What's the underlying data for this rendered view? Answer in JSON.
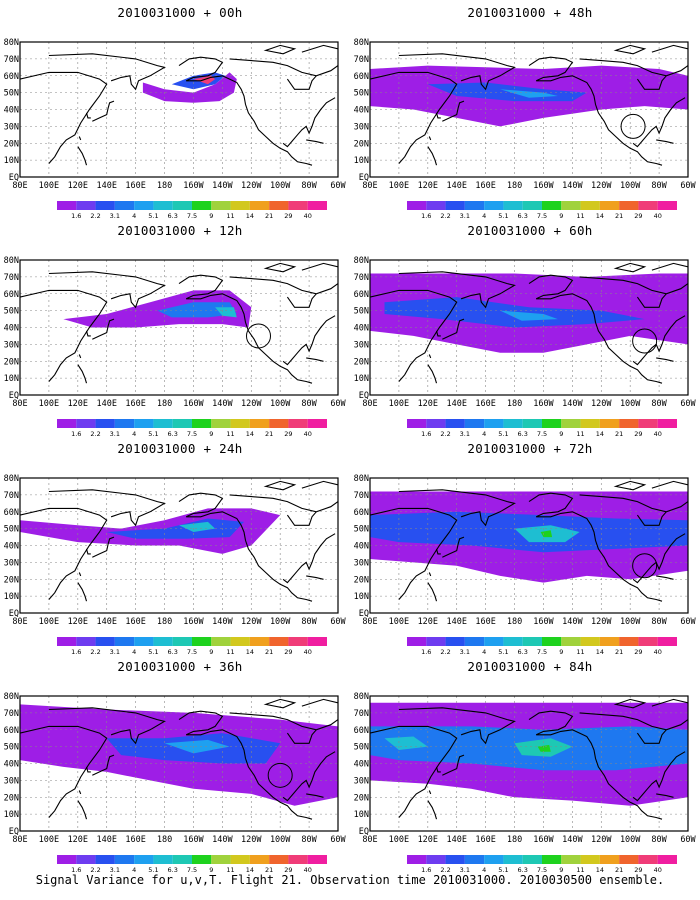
{
  "panels": [
    {
      "id": "p00",
      "title": "2010031000 + 00h"
    },
    {
      "id": "p48",
      "title": "2010031000 + 48h"
    },
    {
      "id": "p12",
      "title": "2010031000 + 12h"
    },
    {
      "id": "p60",
      "title": "2010031000 + 60h"
    },
    {
      "id": "p24",
      "title": "2010031000 + 24h"
    },
    {
      "id": "p72",
      "title": "2010031000 + 72h"
    },
    {
      "id": "p36",
      "title": "2010031000 + 36h"
    },
    {
      "id": "p84",
      "title": "2010031000 + 84h"
    }
  ],
  "lat_labels": [
    "80N",
    "70N",
    "60N",
    "50N",
    "40N",
    "30N",
    "20N",
    "10N",
    "EQ"
  ],
  "lon_labels": [
    "80E",
    "100E",
    "120E",
    "140E",
    "160E",
    "180",
    "160W",
    "140W",
    "120W",
    "100W",
    "80W",
    "60W"
  ],
  "colorbar": {
    "labels": [
      "1.6",
      "2.2",
      "3.1",
      "4",
      "5.1",
      "6.3",
      "7.5",
      "9",
      "11",
      "14",
      "21",
      "29",
      "40"
    ],
    "colors": [
      "#9e1ee6",
      "#6e3cf0",
      "#2850f0",
      "#1e78f0",
      "#1ea0f0",
      "#1ebed2",
      "#1ec8b4",
      "#1ed21e",
      "#a0d23c",
      "#d2c81e",
      "#f0a01e",
      "#f0642d",
      "#f03c78",
      "#f01ea0"
    ]
  },
  "footer": "Signal Variance for u,v,T. Flight 21. Observation time 2010031000. 2010030500 ensemble."
}
